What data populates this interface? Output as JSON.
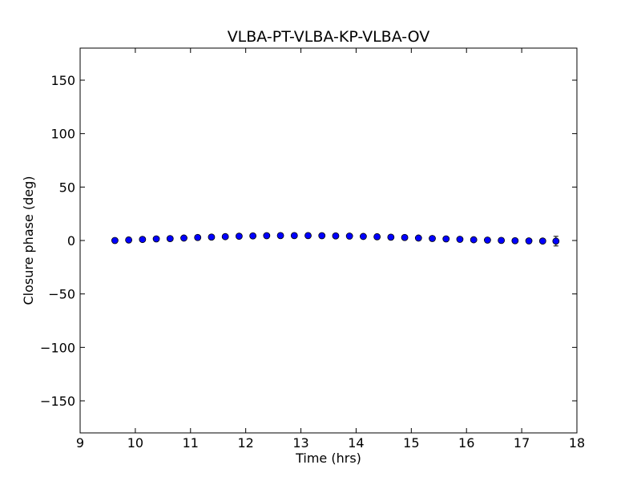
{
  "chart_data": {
    "type": "scatter",
    "title": "VLBA-PT-VLBA-KP-VLBA-OV",
    "xlabel": "Time (hrs)",
    "ylabel": "Closure phase (deg)",
    "xlim": [
      9,
      18
    ],
    "ylim": [
      -180,
      180
    ],
    "xticks": [
      9,
      10,
      11,
      12,
      13,
      14,
      15,
      16,
      17,
      18
    ],
    "yticks": [
      -150,
      -100,
      -50,
      0,
      50,
      100,
      150
    ],
    "xtick_labels": [
      "9",
      "10",
      "11",
      "12",
      "13",
      "14",
      "15",
      "16",
      "17",
      "18"
    ],
    "ytick_labels": [
      "−150",
      "−100",
      "−50",
      "0",
      "50",
      "100",
      "150"
    ],
    "grid": false,
    "marker_color": "#0000ff",
    "error_bar_color": "#000000",
    "series": [
      {
        "x": [
          9.63,
          9.88,
          10.13,
          10.38,
          10.63,
          10.88,
          11.13,
          11.38,
          11.63,
          11.88,
          12.13,
          12.38,
          12.63,
          12.88,
          13.13,
          13.38,
          13.63,
          13.88,
          14.13,
          14.38,
          14.63,
          14.88,
          15.13,
          15.38,
          15.63,
          15.88,
          16.13,
          16.38,
          16.63,
          16.88,
          17.13,
          17.38,
          17.62
        ],
        "y": [
          0.0,
          0.5,
          1.0,
          1.5,
          1.8,
          2.3,
          2.8,
          3.2,
          3.6,
          4.0,
          4.3,
          4.5,
          4.6,
          4.6,
          4.6,
          4.5,
          4.3,
          4.1,
          3.8,
          3.5,
          3.1,
          2.8,
          2.3,
          1.9,
          1.5,
          1.1,
          0.7,
          0.4,
          0.1,
          -0.2,
          -0.4,
          -0.5,
          -0.6
        ],
        "yerr": [
          1.0,
          1.0,
          1.0,
          1.0,
          1.0,
          1.0,
          1.0,
          1.0,
          1.0,
          1.0,
          1.0,
          1.0,
          1.0,
          1.0,
          1.0,
          1.0,
          1.0,
          1.0,
          1.0,
          1.0,
          1.0,
          1.0,
          1.0,
          1.0,
          1.0,
          1.0,
          1.0,
          1.0,
          1.0,
          1.0,
          1.0,
          1.0,
          4.5
        ]
      }
    ]
  }
}
